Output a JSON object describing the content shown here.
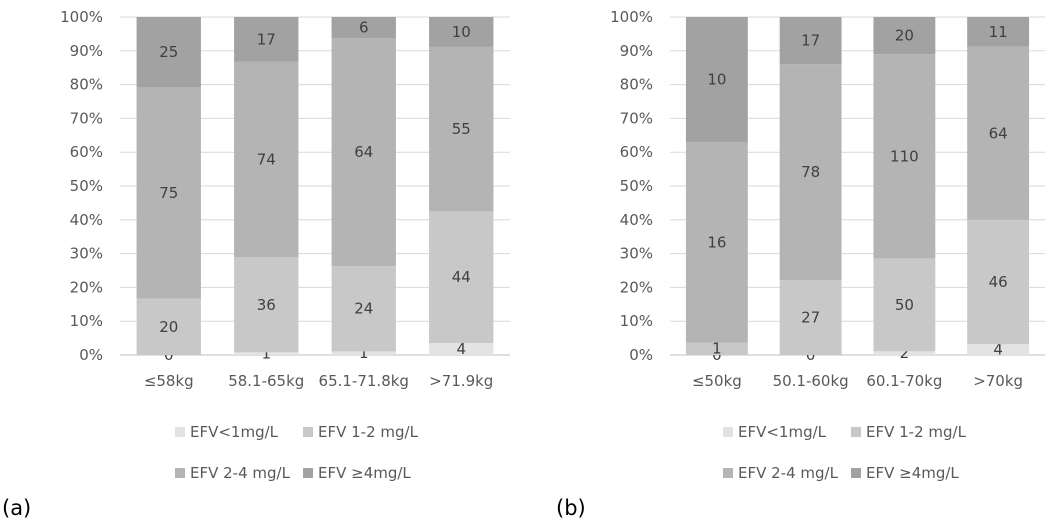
{
  "colors": {
    "EFV<1mg/L": "#e3e3e3",
    "EFV 1-2 mg/L": "#c8c8c8",
    "EFV 2-4 mg/L": "#b4b4b4",
    "EFV ≥4mg/L": "#a2a2a2",
    "gridline": "#d9d9d9",
    "axis": "#bfbfbf"
  },
  "chart_data": [
    {
      "type": "bar",
      "stacked": "percent",
      "panel_label": "(a)",
      "title": "",
      "xlabel": "",
      "ylabel": "",
      "ylim": [
        0,
        100
      ],
      "y_ticks": [
        "0%",
        "10%",
        "20%",
        "30%",
        "40%",
        "50%",
        "60%",
        "70%",
        "80%",
        "90%",
        "100%"
      ],
      "grid": true,
      "legend_position": "bottom",
      "categories": [
        "≤58kg",
        "58.1-65kg",
        "65.1-71.8kg",
        ">71.9kg"
      ],
      "series": [
        {
          "name": "EFV<1mg/L",
          "values": [
            0,
            1,
            1,
            4
          ]
        },
        {
          "name": "EFV 1-2 mg/L",
          "values": [
            20,
            36,
            24,
            44
          ]
        },
        {
          "name": "EFV 2-4 mg/L",
          "values": [
            75,
            74,
            64,
            55
          ]
        },
        {
          "name": "EFV ≥4mg/L",
          "values": [
            25,
            17,
            6,
            10
          ]
        }
      ]
    },
    {
      "type": "bar",
      "stacked": "percent",
      "panel_label": "(b)",
      "title": "",
      "xlabel": "",
      "ylabel": "",
      "ylim": [
        0,
        100
      ],
      "y_ticks": [
        "0%",
        "10%",
        "20%",
        "30%",
        "40%",
        "50%",
        "60%",
        "70%",
        "80%",
        "90%",
        "100%"
      ],
      "grid": true,
      "legend_position": "bottom",
      "categories": [
        "≤50kg",
        "50.1-60kg",
        "60.1-70kg",
        ">70kg"
      ],
      "series": [
        {
          "name": "EFV<1mg/L",
          "values": [
            0,
            0,
            2,
            4
          ]
        },
        {
          "name": "EFV 1-2 mg/L",
          "values": [
            1,
            27,
            50,
            46
          ]
        },
        {
          "name": "EFV 2-4 mg/L",
          "values": [
            16,
            78,
            110,
            64
          ]
        },
        {
          "name": "EFV ≥4mg/L",
          "values": [
            10,
            17,
            20,
            11
          ]
        }
      ]
    }
  ]
}
